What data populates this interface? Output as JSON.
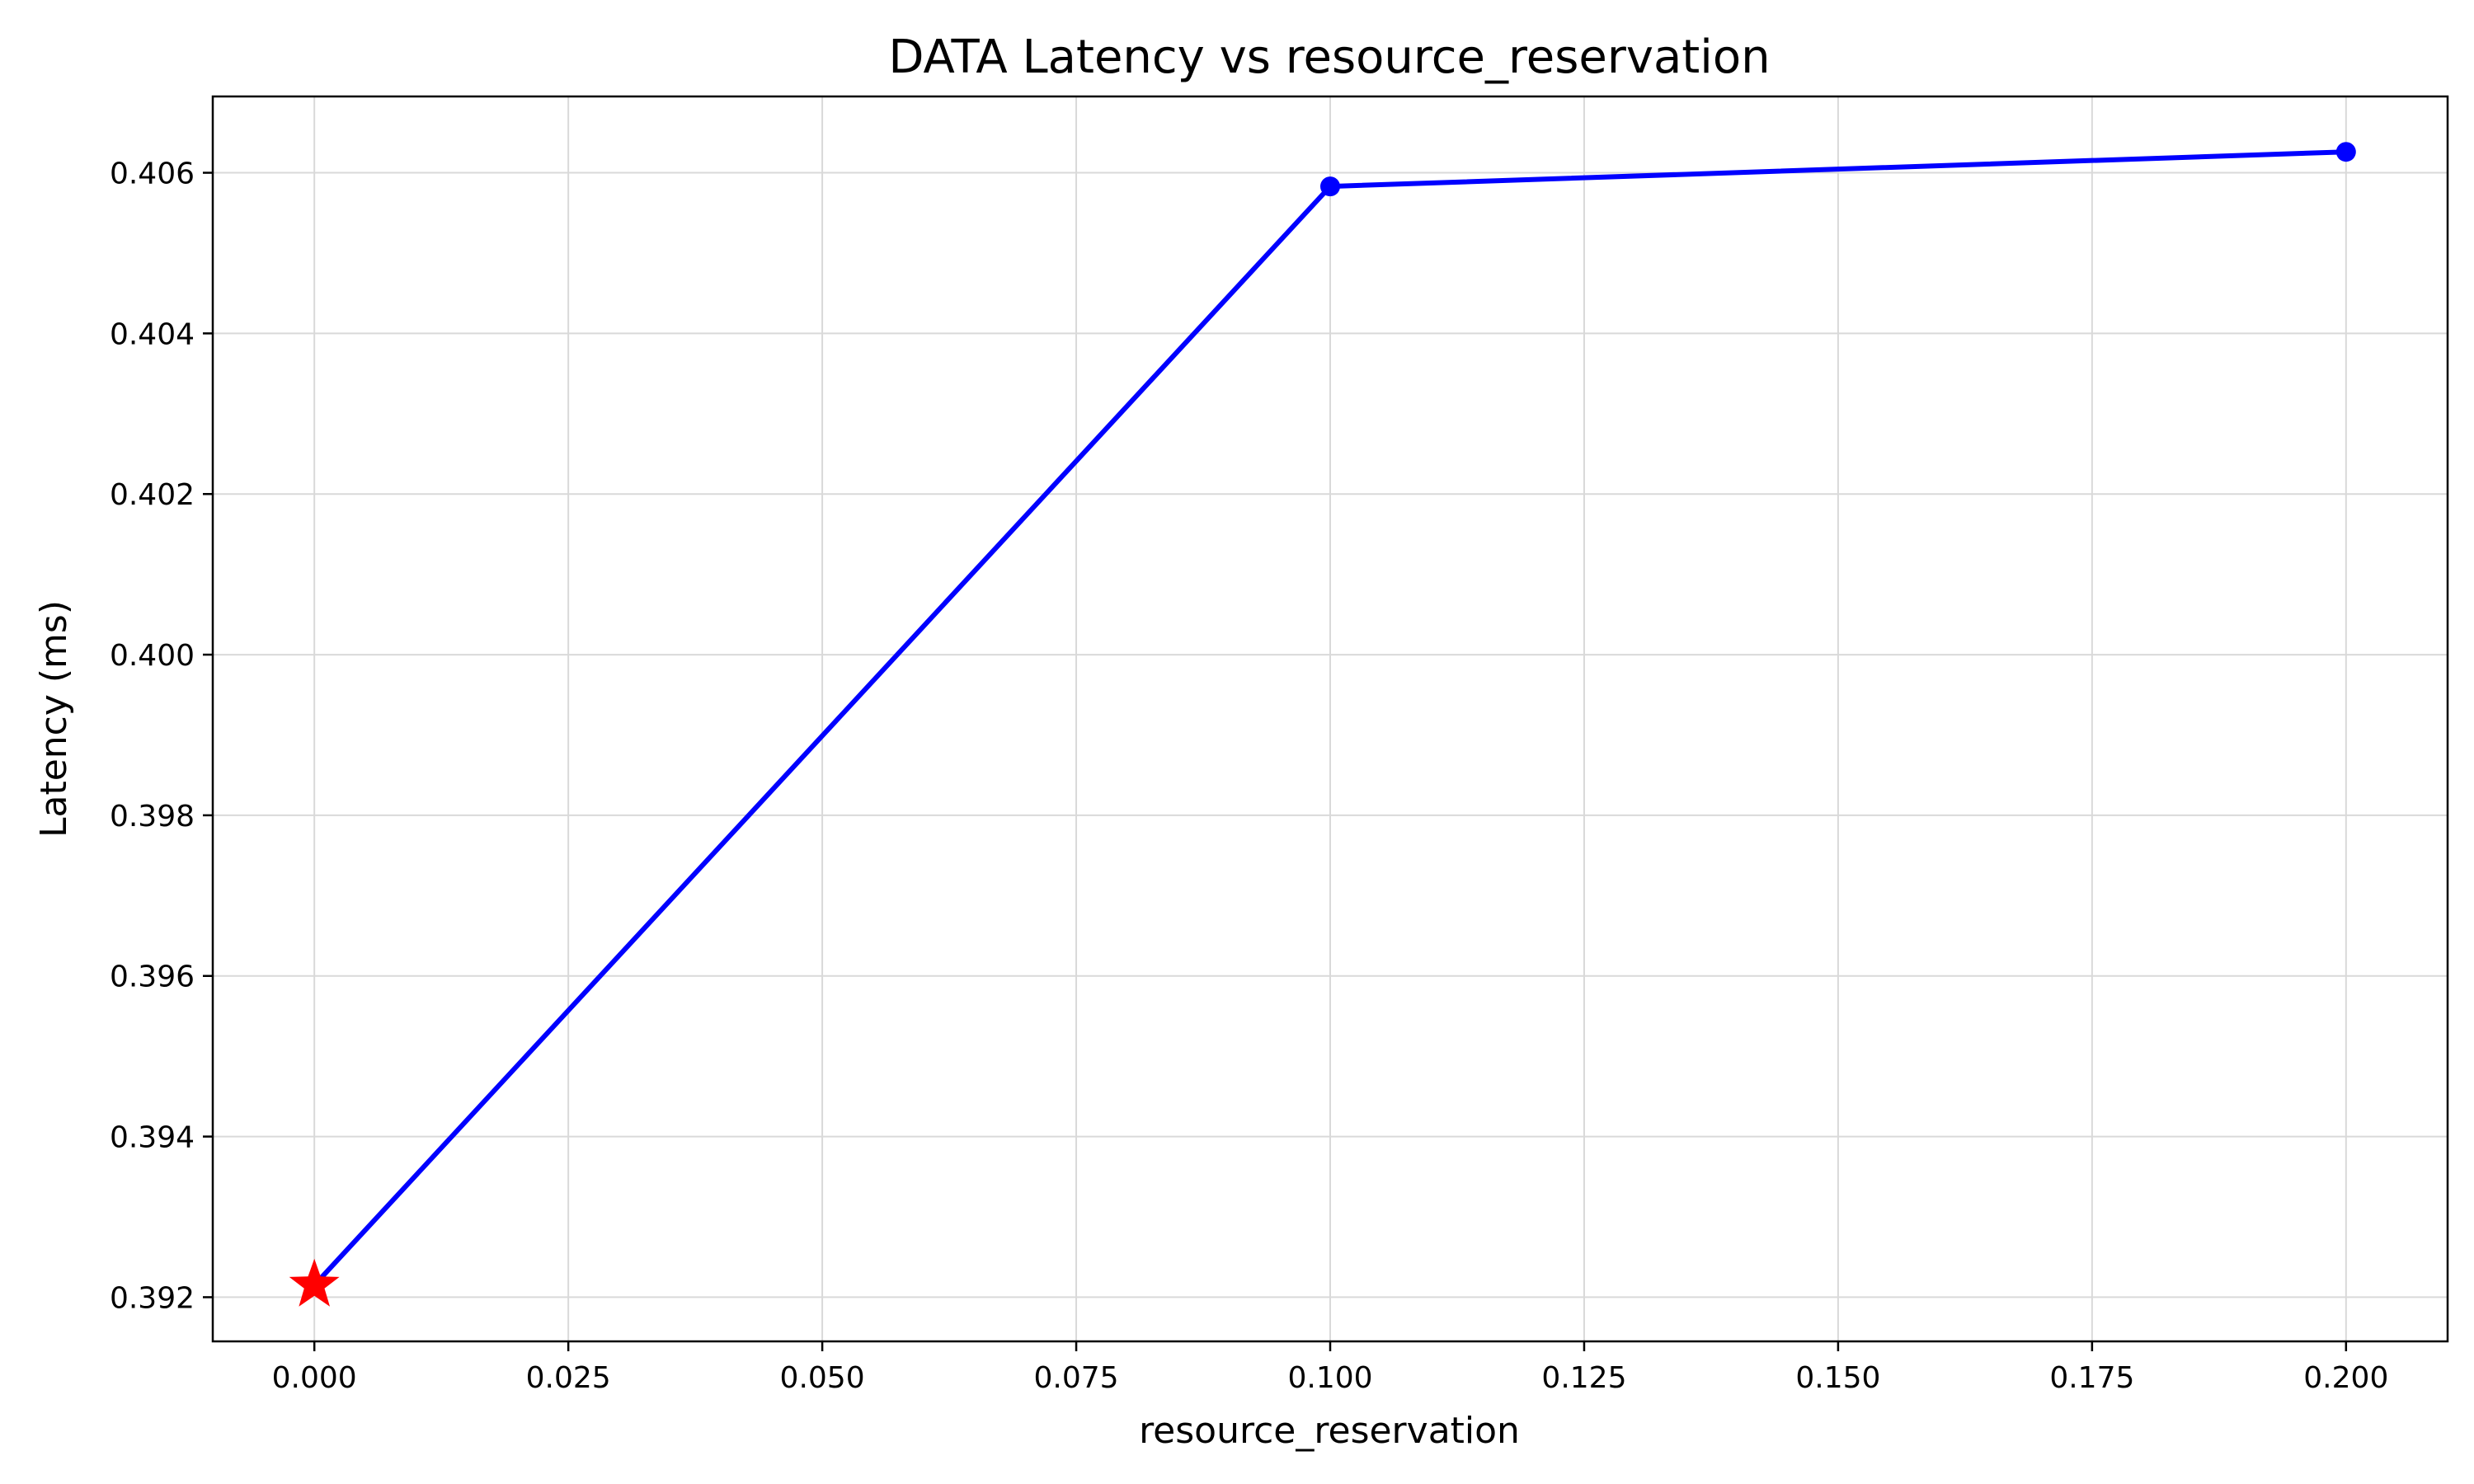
{
  "chart_data": {
    "type": "line",
    "title": "DATA Latency vs resource_reservation",
    "xlabel": "resource_reservation",
    "ylabel": "Latency (ms)",
    "xlim": [
      -0.01,
      0.21
    ],
    "ylim": [
      0.39145,
      0.40695
    ],
    "x_ticks": [
      0.0,
      0.025,
      0.05,
      0.075,
      0.1,
      0.125,
      0.15,
      0.175,
      0.2
    ],
    "x_tick_labels": [
      "0.000",
      "0.025",
      "0.050",
      "0.075",
      "0.100",
      "0.125",
      "0.150",
      "0.175",
      "0.200"
    ],
    "y_ticks": [
      0.392,
      0.394,
      0.396,
      0.398,
      0.4,
      0.402,
      0.404,
      0.406
    ],
    "y_tick_labels": [
      "0.392",
      "0.394",
      "0.396",
      "0.398",
      "0.400",
      "0.402",
      "0.404",
      "0.406"
    ],
    "grid": true,
    "series": [
      {
        "x": [
          0.0,
          0.1,
          0.2
        ],
        "y": [
          0.39215,
          0.40583,
          0.40626
        ],
        "color": "#0000ff",
        "marker": "circle"
      }
    ],
    "highlight": {
      "x": 0.0,
      "y": 0.39215,
      "color": "#ff0000",
      "marker": "star"
    }
  }
}
